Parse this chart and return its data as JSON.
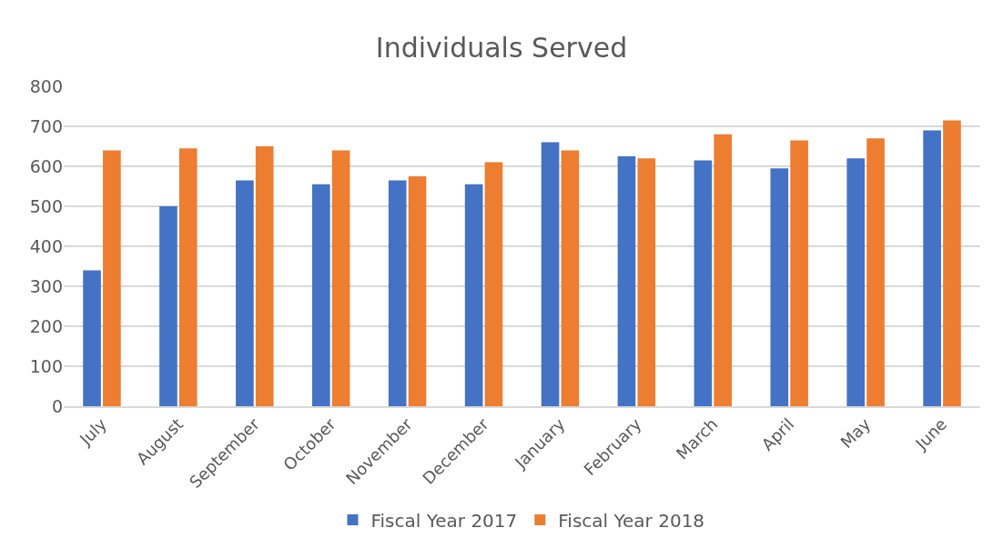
{
  "chart_data": {
    "type": "bar",
    "title": "Individuals Served",
    "categories": [
      "July",
      "August",
      "September",
      "October",
      "November",
      "December",
      "January",
      "February",
      "March",
      "April",
      "May",
      "June"
    ],
    "series": [
      {
        "name": "Fiscal Year 2017",
        "color": "#4472c4",
        "values": [
          340,
          500,
          565,
          555,
          565,
          555,
          660,
          625,
          615,
          595,
          620,
          690
        ]
      },
      {
        "name": "Fiscal Year 2018",
        "color": "#ed7d31",
        "values": [
          640,
          645,
          650,
          640,
          575,
          610,
          640,
          620,
          680,
          665,
          670,
          715
        ]
      }
    ],
    "ylim": [
      0,
      800
    ],
    "yticks": [
      0,
      100,
      200,
      300,
      400,
      500,
      600,
      700,
      800
    ],
    "grid": "y",
    "legend": "bottom"
  }
}
